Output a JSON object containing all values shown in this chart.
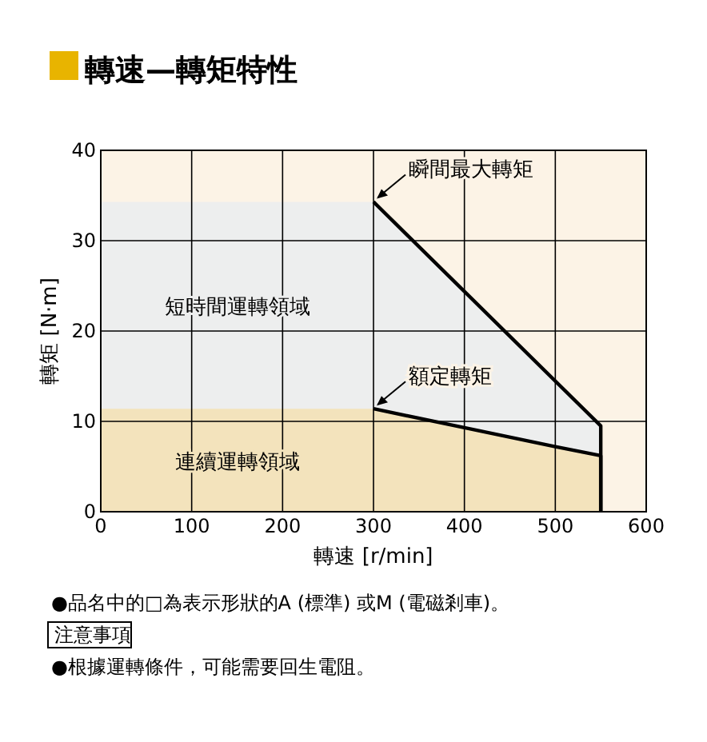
{
  "chart_data": {
    "type": "area",
    "title": "轉速—轉矩特性",
    "xlabel": "轉速 [r/min]",
    "ylabel": "轉矩 [N·m]",
    "xlim": [
      0,
      600
    ],
    "xticks": [
      0,
      100,
      200,
      300,
      400,
      500,
      600
    ],
    "ylim": [
      0,
      40
    ],
    "yticks": [
      0,
      10,
      20,
      30,
      40
    ],
    "grid": true,
    "line_style": "solid",
    "marker": "none",
    "series": [
      {
        "name": "短時間運轉領域",
        "color": "#edeeee",
        "x": [
          0,
          300,
          550,
          550
        ],
        "values": [
          34.3,
          34.3,
          9.5,
          0
        ]
      },
      {
        "name": "連續運轉領域",
        "color": "#f3e3bc",
        "x": [
          0,
          300,
          400,
          500,
          550,
          550
        ],
        "values": [
          11.4,
          11.4,
          9.3,
          7.2,
          6.2,
          0
        ]
      }
    ],
    "annotations": [
      {
        "text": "瞬間最大轉矩",
        "x": 300,
        "y": 34.3
      },
      {
        "text": "額定轉矩",
        "x": 300,
        "y": 11.4
      },
      "●品名中的□為表示形狀的A (標準) 或M (電磁剎車)。",
      "注意事項",
      "●根據運轉條件，可能需要回生電阻。"
    ]
  }
}
